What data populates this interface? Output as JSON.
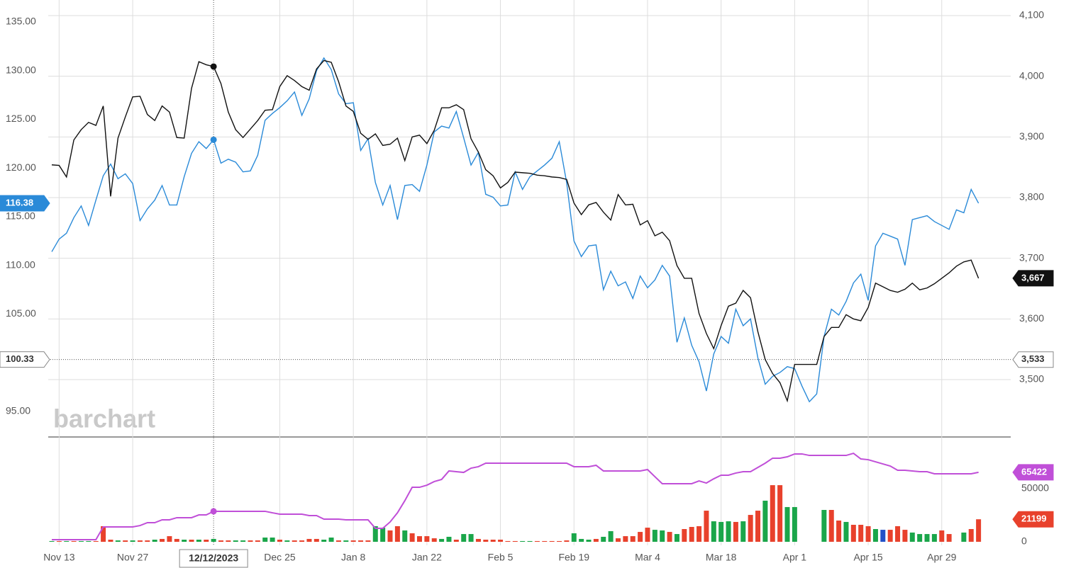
{
  "chart_data": [
    {
      "type": "line",
      "watermark": "barchart",
      "crosshair_label": "12/12/2023",
      "categories": [
        null,
        "Nov 13",
        null,
        null,
        null,
        null,
        null,
        null,
        null,
        null,
        null,
        "Nov 27",
        null,
        null,
        null,
        null,
        null,
        null,
        null,
        null,
        null,
        null,
        null,
        null,
        null,
        null,
        null,
        null,
        null,
        null,
        null,
        "Dec 25",
        null,
        null,
        null,
        null,
        null,
        null,
        null,
        null,
        null,
        "Jan 8",
        null,
        null,
        null,
        null,
        null,
        null,
        null,
        null,
        null,
        "Jan 22",
        null,
        null,
        null,
        null,
        null,
        null,
        null,
        null,
        null,
        "Feb 5",
        null,
        null,
        null,
        null,
        null,
        null,
        null,
        null,
        null,
        "Feb 19",
        null,
        null,
        null,
        null,
        null,
        null,
        null,
        null,
        null,
        "Mar 4",
        null,
        null,
        null,
        null,
        null,
        null,
        null,
        null,
        null,
        "Mar 18",
        null,
        null,
        null,
        null,
        null,
        null,
        null,
        null,
        null,
        "Apr 1",
        null,
        null,
        null,
        null,
        null,
        null,
        null,
        null,
        null,
        "Apr 15",
        null,
        null,
        null,
        null,
        null,
        null,
        null,
        null,
        null,
        "Apr 29",
        null,
        null,
        null,
        null,
        null
      ],
      "series": [
        {
          "color": "#2a8ad8",
          "axis": "y",
          "values": [
            111.4,
            112.7,
            113.3,
            114.9,
            116.1,
            114.1,
            116.7,
            119.2,
            120.4,
            118.9,
            119.4,
            118.4,
            114.6,
            115.8,
            116.7,
            118.2,
            116.2,
            116.2,
            119.1,
            121.5,
            122.7,
            122.0,
            122.9,
            120.5,
            120.9,
            120.6,
            119.6,
            119.7,
            121.3,
            124.9,
            125.6,
            126.2,
            126.9,
            127.8,
            125.4,
            127.1,
            130.0,
            131.3,
            130.1,
            127.6,
            126.6,
            126.7,
            121.8,
            123.0,
            118.5,
            116.2,
            118.2,
            114.7,
            118.2,
            118.3,
            117.6,
            120.3,
            123.7,
            124.3,
            124.1,
            125.8,
            123.1,
            120.3,
            121.6,
            117.3,
            117.0,
            116.1,
            116.2,
            119.6,
            117.8,
            119.1,
            119.7,
            120.3,
            121.0,
            122.7,
            118.5,
            112.5,
            110.9,
            112.0,
            112.1,
            107.5,
            109.4,
            107.9,
            108.3,
            106.6,
            108.9,
            107.7,
            108.5,
            110.0,
            108.9,
            102.1,
            104.6,
            101.8,
            100.1,
            97.1,
            100.9,
            102.7,
            102.0,
            105.5,
            103.8,
            104.5,
            100.5,
            97.8,
            98.6,
            99.0,
            99.6,
            99.4,
            97.6,
            96.0,
            96.8,
            102.7,
            105.5,
            104.9,
            106.3,
            108.2,
            109.1,
            106.4,
            112.0,
            113.3,
            113.0,
            112.7,
            110.0,
            114.7,
            114.9,
            115.1,
            114.5,
            114.1,
            113.7,
            115.7,
            115.4,
            117.8,
            116.38
          ]
        },
        {
          "color": "#111111",
          "axis": "y2",
          "last_value_label": "3,667",
          "values": [
            3854,
            3853,
            3834,
            3895,
            3912,
            3924,
            3919,
            3951,
            3802,
            3898,
            3933,
            3966,
            3967,
            3937,
            3927,
            3951,
            3941,
            3899,
            3898,
            3980,
            4024,
            4019,
            4016,
            3988,
            3941,
            3912,
            3899,
            3913,
            3927,
            3944,
            3945,
            3983,
            4001,
            3993,
            3983,
            3977,
            4012,
            4026,
            4023,
            3991,
            3951,
            3942,
            3906,
            3896,
            3905,
            3886,
            3888,
            3898,
            3861,
            3900,
            3903,
            3889,
            3911,
            3948,
            3948,
            3953,
            3945,
            3897,
            3875,
            3846,
            3836,
            3816,
            3825,
            3842,
            3841,
            3840,
            3837,
            3836,
            3834,
            3833,
            3830,
            3791,
            3772,
            3788,
            3792,
            3776,
            3763,
            3805,
            3788,
            3789,
            3755,
            3762,
            3737,
            3743,
            3729,
            3688,
            3667,
            3667,
            3609,
            3576,
            3551,
            3589,
            3621,
            3626,
            3647,
            3635,
            3579,
            3533,
            3510,
            3495,
            3465,
            3525,
            3525,
            3525,
            3525,
            3571,
            3586,
            3586,
            3607,
            3600,
            3597,
            3619,
            3659,
            3653,
            3647,
            3644,
            3649,
            3659,
            3648,
            3651,
            3658,
            3667,
            3676,
            3687,
            3694,
            3697,
            3667
          ]
        }
      ],
      "ylim": [
        92.45,
        137.25
      ],
      "yticks": [
        {
          "value": 95,
          "label": "95.00"
        },
        {
          "value": 105,
          "label": "105.00"
        },
        {
          "value": 110,
          "label": "110.00"
        },
        {
          "value": 115,
          "label": "115.00"
        },
        {
          "value": 120,
          "label": "120.00"
        },
        {
          "value": 125,
          "label": "125.00"
        },
        {
          "value": 130,
          "label": "130.00"
        },
        {
          "value": 135,
          "label": "135.00"
        }
      ],
      "y2lim": [
        3406.6,
        4125.7
      ],
      "y2ticks": [
        {
          "value": 3500,
          "label": "3,500"
        },
        {
          "value": 3600,
          "label": "3,600"
        },
        {
          "value": 3700,
          "label": "3,700"
        },
        {
          "value": 3800,
          "label": "3,800"
        },
        {
          "value": 3900,
          "label": "3,900"
        },
        {
          "value": 4000,
          "label": "4,000"
        },
        {
          "value": 4100,
          "label": "4,100"
        }
      ],
      "crosshair_y": 100.33,
      "crosshair_y2": {
        "value": 3533,
        "label": "3,533"
      },
      "grid": true
    },
    {
      "type": "volume",
      "series": [
        {
          "name": "volume",
          "values": [
            700,
            700,
            700,
            700,
            700,
            700,
            700,
            14700,
            2000,
            1300,
            1300,
            1300,
            1300,
            1300,
            2000,
            2700,
            5300,
            2700,
            2000,
            2000,
            2000,
            2000,
            2700,
            1300,
            1300,
            1300,
            1300,
            1300,
            1300,
            4000,
            4000,
            2000,
            1300,
            1300,
            1300,
            2700,
            2700,
            2000,
            4000,
            1300,
            1300,
            1300,
            1300,
            1300,
            14700,
            13300,
            10700,
            14700,
            10700,
            8000,
            5300,
            5300,
            3300,
            2700,
            4700,
            2000,
            7300,
            7300,
            2700,
            2000,
            2000,
            2000,
            700,
            700,
            700,
            700,
            700,
            700,
            700,
            700,
            1300,
            8000,
            2700,
            2000,
            2700,
            4700,
            10000,
            3300,
            5300,
            5300,
            9300,
            13300,
            11300,
            10700,
            9300,
            7300,
            12000,
            14000,
            14700,
            29300,
            19300,
            18700,
            19300,
            18700,
            19300,
            25300,
            29300,
            38700,
            53300,
            53300,
            32700,
            32700,
            0,
            0,
            0,
            30000,
            30000,
            20000,
            18700,
            16000,
            16000,
            14700,
            12000,
            11300,
            11300,
            14700,
            11300,
            8700,
            7300,
            7300,
            7300,
            10700,
            7300,
            0,
            8700,
            12000,
            21199
          ],
          "colors": [
            "#1aa64a",
            "#e8412c",
            "#1aa64a",
            "#e8412c",
            "#1aa64a",
            "#1aa64a",
            "#e8412c",
            "#e8412c",
            "#e8412c",
            "#1aa64a",
            "#e8412c",
            "#1aa64a",
            "#e8412c",
            "#e8412c",
            "#1aa64a",
            "#e8412c",
            "#e8412c",
            "#e8412c",
            "#1aa64a",
            "#e8412c",
            "#1aa64a",
            "#e8412c",
            "#1aa64a",
            "#e8412c",
            "#e8412c",
            "#1aa64a",
            "#1aa64a",
            "#e8412c",
            "#e8412c",
            "#1aa64a",
            "#1aa64a",
            "#e8412c",
            "#1aa64a",
            "#e8412c",
            "#e8412c",
            "#e8412c",
            "#e8412c",
            "#1aa64a",
            "#1aa64a",
            "#e8412c",
            "#1aa64a",
            "#e8412c",
            "#e8412c",
            "#e8412c",
            "#1aa64a",
            "#1aa64a",
            "#e8412c",
            "#e8412c",
            "#1aa64a",
            "#e8412c",
            "#e8412c",
            "#e8412c",
            "#e8412c",
            "#1aa64a",
            "#1aa64a",
            "#e8412c",
            "#1aa64a",
            "#1aa64a",
            "#e8412c",
            "#e8412c",
            "#e8412c",
            "#e8412c",
            "#e8412c",
            "#e8412c",
            "#1aa64a",
            "#1aa64a",
            "#e8412c",
            "#e8412c",
            "#e8412c",
            "#e8412c",
            "#e8412c",
            "#1aa64a",
            "#1aa64a",
            "#1aa64a",
            "#e8412c",
            "#1aa64a",
            "#1aa64a",
            "#e8412c",
            "#e8412c",
            "#e8412c",
            "#e8412c",
            "#e8412c",
            "#1aa64a",
            "#1aa64a",
            "#e8412c",
            "#1aa64a",
            "#e8412c",
            "#e8412c",
            "#e8412c",
            "#e8412c",
            "#1aa64a",
            "#1aa64a",
            "#1aa64a",
            "#e8412c",
            "#1aa64a",
            "#e8412c",
            "#e8412c",
            "#1aa64a",
            "#e8412c",
            "#e8412c",
            "#1aa64a",
            "#1aa64a",
            "#1aa64a",
            "#1aa64a",
            "#1aa64a",
            "#1aa64a",
            "#e8412c",
            "#e8412c",
            "#1aa64a",
            "#e8412c",
            "#e8412c",
            "#e8412c",
            "#1aa64a",
            "#2250c8",
            "#e8412c",
            "#e8412c",
            "#e8412c",
            "#1aa64a",
            "#1aa64a",
            "#1aa64a",
            "#1aa64a",
            "#e8412c",
            "#e8412c",
            "#e8412c",
            "#1aa64a",
            "#e8412c",
            "#e8412c"
          ],
          "badge_color": "#e8412c"
        },
        {
          "name": "open interest",
          "color": "#c04fd8",
          "values": [
            2000,
            2000,
            2000,
            2000,
            2000,
            2000,
            2000,
            14000,
            14000,
            14000,
            14000,
            14000,
            15300,
            18000,
            18000,
            20700,
            20700,
            22700,
            22700,
            22700,
            25300,
            25300,
            28700,
            28700,
            28700,
            28700,
            28700,
            28700,
            28700,
            28700,
            27300,
            26000,
            26000,
            26000,
            26000,
            24700,
            24700,
            21300,
            21300,
            21300,
            20700,
            20700,
            20700,
            20700,
            12700,
            12700,
            18700,
            27300,
            38700,
            51300,
            51300,
            53300,
            56700,
            58700,
            66700,
            66000,
            65300,
            69300,
            70700,
            74000,
            74000,
            74000,
            74000,
            74000,
            74000,
            74000,
            74000,
            74000,
            74000,
            74000,
            74000,
            70700,
            70700,
            70700,
            72000,
            66700,
            66700,
            66700,
            66700,
            66700,
            66700,
            68000,
            61300,
            54700,
            54700,
            54700,
            54700,
            54700,
            57300,
            55300,
            59300,
            62700,
            62700,
            64700,
            66000,
            66000,
            70000,
            74000,
            78700,
            78700,
            80000,
            82700,
            82700,
            81300,
            81300,
            81300,
            81300,
            81300,
            81300,
            83300,
            78000,
            77300,
            75300,
            73300,
            71300,
            67300,
            67300,
            66700,
            66000,
            66000,
            64000,
            64000,
            64000,
            64000,
            64000,
            64000,
            65422
          ]
        }
      ],
      "ylim": [
        -3333,
        98667
      ],
      "yticks": [
        0,
        50000
      ]
    }
  ]
}
